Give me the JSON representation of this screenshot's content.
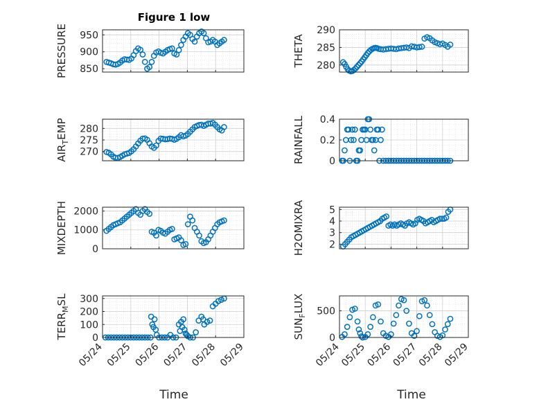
{
  "figure": {
    "title": "Figure 1 low",
    "xlabel": "Time",
    "marker_color": "#0072BD",
    "grid": true
  },
  "chart_data": [
    {
      "type": "scatter",
      "ylabel": "PRESSURE",
      "xlim": [
        "05/24",
        "05/29"
      ],
      "ylim": [
        840,
        965
      ],
      "yticks": [
        850,
        900,
        950
      ],
      "xticks": [
        "05/24",
        "05/25",
        "05/26",
        "05/27",
        "05/28",
        "05/29"
      ],
      "x": [
        0.14,
        0.22,
        0.3,
        0.38,
        0.46,
        0.54,
        0.62,
        0.7,
        0.78,
        0.86,
        0.94,
        1.02,
        1.1,
        1.18,
        1.26,
        1.34,
        1.42,
        1.5,
        1.58,
        1.66,
        1.74,
        1.82,
        1.9,
        1.98,
        2.06,
        2.14,
        2.22,
        2.3,
        2.38,
        2.46,
        2.54,
        2.62,
        2.7,
        2.78,
        2.86,
        2.94,
        3.02,
        3.1,
        3.18,
        3.26,
        3.34,
        3.42,
        3.5,
        3.58,
        3.66,
        3.74,
        3.82,
        3.9,
        3.98,
        4.06,
        4.14,
        4.22,
        4.3
      ],
      "y": [
        870,
        868,
        866,
        863,
        862,
        864,
        868,
        874,
        878,
        877,
        876,
        880,
        890,
        902,
        910,
        906,
        892,
        870,
        850,
        855,
        870,
        888,
        898,
        901,
        897,
        895,
        900,
        905,
        908,
        910,
        895,
        892,
        905,
        920,
        935,
        945,
        955,
        950,
        938,
        930,
        945,
        955,
        960,
        955,
        940,
        928,
        930,
        935,
        930,
        920,
        925,
        930,
        935
      ]
    },
    {
      "type": "scatter",
      "ylabel": "THETA",
      "xlim": [
        "05/24",
        "05/29"
      ],
      "ylim": [
        278,
        290
      ],
      "yticks": [
        280,
        285,
        290
      ],
      "xticks": [
        "05/24",
        "05/25",
        "05/26",
        "05/27",
        "05/28",
        "05/29"
      ],
      "x": [
        0.14,
        0.2,
        0.26,
        0.32,
        0.38,
        0.44,
        0.5,
        0.56,
        0.62,
        0.68,
        0.74,
        0.8,
        0.86,
        0.92,
        0.98,
        1.04,
        1.1,
        1.16,
        1.22,
        1.28,
        1.34,
        1.4,
        1.46,
        1.52,
        1.6,
        1.7,
        1.8,
        1.9,
        2.0,
        2.1,
        2.2,
        2.3,
        2.4,
        2.5,
        2.6,
        2.7,
        2.8,
        2.9,
        3.0,
        3.1,
        3.2,
        3.3,
        3.4,
        3.5,
        3.6,
        3.7,
        3.8,
        3.9,
        4.0,
        4.1,
        4.2,
        4.3
      ],
      "y": [
        280.8,
        280.3,
        279.5,
        278.8,
        278.4,
        278.2,
        278.3,
        278.6,
        279,
        279.5,
        280,
        280.5,
        281,
        281.6,
        282.2,
        282.8,
        283.4,
        283.9,
        284.3,
        284.6,
        284.8,
        284.9,
        284.8,
        284.6,
        284.5,
        284.4,
        284.5,
        284.6,
        284.7,
        284.6,
        284.5,
        284.7,
        284.8,
        284.9,
        285,
        284.8,
        285.3,
        285.2,
        285.0,
        285.1,
        285.2,
        287.5,
        287.9,
        287.6,
        287.0,
        286.5,
        286.2,
        285.9,
        286.1,
        285.7,
        285.2,
        285.8
      ]
    },
    {
      "type": "scatter",
      "ylabel": "AIR_TEMP",
      "xlim": [
        "05/24",
        "05/29"
      ],
      "ylim": [
        266,
        284
      ],
      "yticks": [
        270,
        275,
        280
      ],
      "xticks": [
        "05/24",
        "05/25",
        "05/26",
        "05/27",
        "05/28",
        "05/29"
      ],
      "x": [
        0.14,
        0.22,
        0.3,
        0.38,
        0.46,
        0.54,
        0.62,
        0.7,
        0.78,
        0.86,
        0.94,
        1.02,
        1.1,
        1.18,
        1.26,
        1.34,
        1.42,
        1.5,
        1.58,
        1.66,
        1.74,
        1.82,
        1.9,
        1.98,
        2.06,
        2.14,
        2.22,
        2.3,
        2.38,
        2.46,
        2.54,
        2.62,
        2.7,
        2.78,
        2.86,
        2.94,
        3.02,
        3.1,
        3.18,
        3.26,
        3.34,
        3.42,
        3.5,
        3.58,
        3.66,
        3.74,
        3.82,
        3.9,
        3.98,
        4.06,
        4.14,
        4.22,
        4.3
      ],
      "y": [
        269.8,
        269.5,
        268.8,
        267.8,
        267.3,
        267.2,
        267.6,
        268.2,
        268.8,
        269.1,
        269.4,
        270.1,
        271.0,
        272.2,
        273.5,
        274.7,
        275.6,
        275.7,
        275.1,
        273.6,
        272.2,
        271.6,
        272.6,
        274.6,
        275.6,
        275.5,
        275.3,
        275.4,
        275.6,
        275.5,
        275.1,
        275.5,
        276.2,
        277.1,
        276.6,
        276.9,
        277.6,
        278.6,
        279.6,
        280.6,
        281.1,
        281.5,
        281.6,
        281.1,
        281.6,
        282.1,
        282.1,
        282.4,
        281.6,
        280.6,
        279.6,
        279.1,
        280.6
      ]
    },
    {
      "type": "scatter",
      "ylabel": "RAINFALL",
      "xlim": [
        "05/24",
        "05/29"
      ],
      "ylim": [
        0,
        0.4
      ],
      "yticks": [
        0,
        0.2,
        0.4
      ],
      "xticks": [
        "05/24",
        "05/25",
        "05/26",
        "05/27",
        "05/28",
        "05/29"
      ],
      "x": [
        0.1,
        0.15,
        0.2,
        0.25,
        0.3,
        0.35,
        0.4,
        0.45,
        0.5,
        0.55,
        0.6,
        0.65,
        0.7,
        0.75,
        0.8,
        0.85,
        0.9,
        0.95,
        1.0,
        1.05,
        1.1,
        1.15,
        1.2,
        1.25,
        1.3,
        1.35,
        1.4,
        1.45,
        1.5,
        1.55,
        1.6,
        1.65,
        1.7,
        1.8,
        1.9,
        2.0,
        2.1,
        2.2,
        2.3,
        2.4,
        2.5,
        2.6,
        2.7,
        2.8,
        2.9,
        3.0,
        3.1,
        3.2,
        3.3,
        3.4,
        3.5,
        3.6,
        3.7,
        3.8,
        3.9,
        4.0,
        4.1,
        4.2,
        4.3
      ],
      "y": [
        0,
        0,
        0.1,
        0.2,
        0.3,
        0.3,
        0,
        0.2,
        0.3,
        0.2,
        0.3,
        0,
        0,
        0.1,
        0.1,
        0.2,
        0.3,
        0.3,
        0.3,
        0.2,
        0.4,
        0.4,
        0.3,
        0.2,
        0.2,
        0.1,
        0.2,
        0.3,
        0.3,
        0,
        0.2,
        0.3,
        0,
        0,
        0,
        0,
        0,
        0,
        0,
        0,
        0,
        0,
        0,
        0,
        0,
        0,
        0,
        0,
        0,
        0,
        0,
        0,
        0,
        0,
        0,
        0,
        0,
        0,
        0
      ]
    },
    {
      "type": "scatter",
      "ylabel": "MIXDEPTH",
      "xlim": [
        "05/24",
        "05/29"
      ],
      "ylim": [
        0,
        2200
      ],
      "yticks": [
        0,
        1000,
        2000
      ],
      "xticks": [
        "05/24",
        "05/25",
        "05/26",
        "05/27",
        "05/28",
        "05/29"
      ],
      "x": [
        0.14,
        0.22,
        0.3,
        0.38,
        0.46,
        0.54,
        0.62,
        0.7,
        0.78,
        0.86,
        0.94,
        1.02,
        1.1,
        1.18,
        1.26,
        1.34,
        1.42,
        1.5,
        1.58,
        1.66,
        1.74,
        1.82,
        1.9,
        1.98,
        2.06,
        2.14,
        2.22,
        2.3,
        2.38,
        2.46,
        2.54,
        2.62,
        2.7,
        2.78,
        2.86,
        2.94,
        3.02,
        3.1,
        3.18,
        3.26,
        3.34,
        3.42,
        3.5,
        3.58,
        3.66,
        3.74,
        3.82,
        3.9,
        3.98,
        4.06,
        4.14,
        4.22,
        4.3
      ],
      "y": [
        950,
        1050,
        1150,
        1250,
        1300,
        1350,
        1400,
        1500,
        1600,
        1700,
        1800,
        1900,
        2000,
        2100,
        1900,
        1800,
        2000,
        2100,
        1950,
        1850,
        900,
        850,
        700,
        1000,
        950,
        850,
        800,
        900,
        1000,
        1050,
        500,
        550,
        600,
        450,
        200,
        250,
        1300,
        1700,
        1500,
        1100,
        900,
        700,
        400,
        300,
        350,
        500,
        700,
        900,
        1100,
        1300,
        1400,
        1450,
        1500
      ]
    },
    {
      "type": "scatter",
      "ylabel": "H2OMIXRA",
      "xlim": [
        "05/24",
        "05/29"
      ],
      "ylim": [
        1.6,
        5.2
      ],
      "yticks": [
        2,
        3,
        4,
        5
      ],
      "xticks": [
        "05/24",
        "05/25",
        "05/26",
        "05/27",
        "05/28",
        "05/29"
      ],
      "x": [
        0.14,
        0.22,
        0.3,
        0.38,
        0.46,
        0.54,
        0.62,
        0.7,
        0.78,
        0.86,
        0.94,
        1.02,
        1.1,
        1.18,
        1.26,
        1.34,
        1.42,
        1.5,
        1.58,
        1.66,
        1.74,
        1.82,
        1.9,
        1.98,
        2.06,
        2.14,
        2.22,
        2.3,
        2.38,
        2.46,
        2.54,
        2.62,
        2.7,
        2.78,
        2.86,
        2.94,
        3.02,
        3.1,
        3.18,
        3.26,
        3.34,
        3.42,
        3.5,
        3.58,
        3.66,
        3.74,
        3.82,
        3.9,
        3.98,
        4.06,
        4.14,
        4.22,
        4.3
      ],
      "y": [
        1.8,
        2.0,
        2.2,
        2.4,
        2.6,
        2.7,
        2.8,
        2.9,
        3.0,
        3.1,
        3.2,
        3.3,
        3.4,
        3.5,
        3.6,
        3.7,
        3.8,
        3.9,
        4.0,
        4.2,
        4.3,
        4.4,
        3.6,
        3.7,
        3.6,
        3.7,
        3.6,
        3.7,
        3.8,
        3.7,
        3.6,
        3.8,
        3.9,
        3.8,
        3.7,
        3.8,
        4.1,
        4.2,
        4.1,
        4.0,
        3.8,
        3.9,
        4.0,
        4.1,
        3.9,
        4.0,
        4.1,
        4.2,
        4.2,
        4.2,
        4.3,
        4.8,
        5.0
      ]
    },
    {
      "type": "scatter",
      "ylabel": "TERR_MSL",
      "xlim": [
        "05/24",
        "05/29"
      ],
      "ylim": [
        0,
        320
      ],
      "yticks": [
        0,
        100,
        200,
        300
      ],
      "xticks": [
        "05/24",
        "05/25",
        "05/26",
        "05/27",
        "05/28",
        "05/29"
      ],
      "x": [
        0.1,
        0.2,
        0.3,
        0.4,
        0.5,
        0.6,
        0.7,
        0.8,
        0.9,
        1.0,
        1.1,
        1.2,
        1.3,
        1.4,
        1.5,
        1.6,
        1.7,
        1.72,
        1.76,
        1.8,
        1.84,
        1.88,
        1.92,
        2.0,
        2.1,
        2.2,
        2.3,
        2.4,
        2.5,
        2.6,
        2.7,
        2.74,
        2.78,
        2.82,
        2.86,
        2.9,
        2.94,
        2.98,
        3.02,
        3.1,
        3.2,
        3.3,
        3.4,
        3.5,
        3.56,
        3.6,
        3.7,
        3.8,
        3.9,
        4.0,
        4.1,
        4.2,
        4.3
      ],
      "y": [
        0,
        0,
        0,
        0,
        0,
        0,
        0,
        0,
        0,
        0,
        0,
        0,
        0,
        0,
        0,
        0,
        0,
        160,
        100,
        80,
        140,
        60,
        20,
        0,
        0,
        0,
        0,
        20,
        0,
        0,
        100,
        50,
        120,
        80,
        140,
        60,
        30,
        20,
        10,
        0,
        0,
        40,
        130,
        160,
        140,
        100,
        120,
        130,
        240,
        260,
        280,
        290,
        300
      ]
    },
    {
      "type": "scatter",
      "ylabel": "SUN_FLUX",
      "xlim": [
        "05/24",
        "05/29"
      ],
      "ylim": [
        0,
        780
      ],
      "yticks": [
        0,
        500
      ],
      "xticks": [
        "05/24",
        "05/25",
        "05/26",
        "05/27",
        "05/28",
        "05/29"
      ],
      "x": [
        0.1,
        0.2,
        0.3,
        0.4,
        0.5,
        0.6,
        0.7,
        0.75,
        0.8,
        0.85,
        0.9,
        1.0,
        1.1,
        1.2,
        1.3,
        1.4,
        1.5,
        1.6,
        1.7,
        1.8,
        1.9,
        2.0,
        2.1,
        2.2,
        2.3,
        2.4,
        2.5,
        2.6,
        2.7,
        2.8,
        2.9,
        3.0,
        3.1,
        3.2,
        3.3,
        3.4,
        3.5,
        3.6,
        3.7,
        3.8,
        3.9,
        4.0,
        4.1,
        4.2,
        4.3
      ],
      "y": [
        10,
        60,
        200,
        380,
        520,
        540,
        300,
        150,
        80,
        20,
        0,
        10,
        60,
        200,
        380,
        600,
        620,
        300,
        80,
        30,
        10,
        60,
        260,
        420,
        600,
        720,
        700,
        500,
        260,
        80,
        30,
        120,
        400,
        680,
        700,
        600,
        420,
        250,
        100,
        30,
        10,
        40,
        150,
        250,
        350
      ]
    }
  ]
}
